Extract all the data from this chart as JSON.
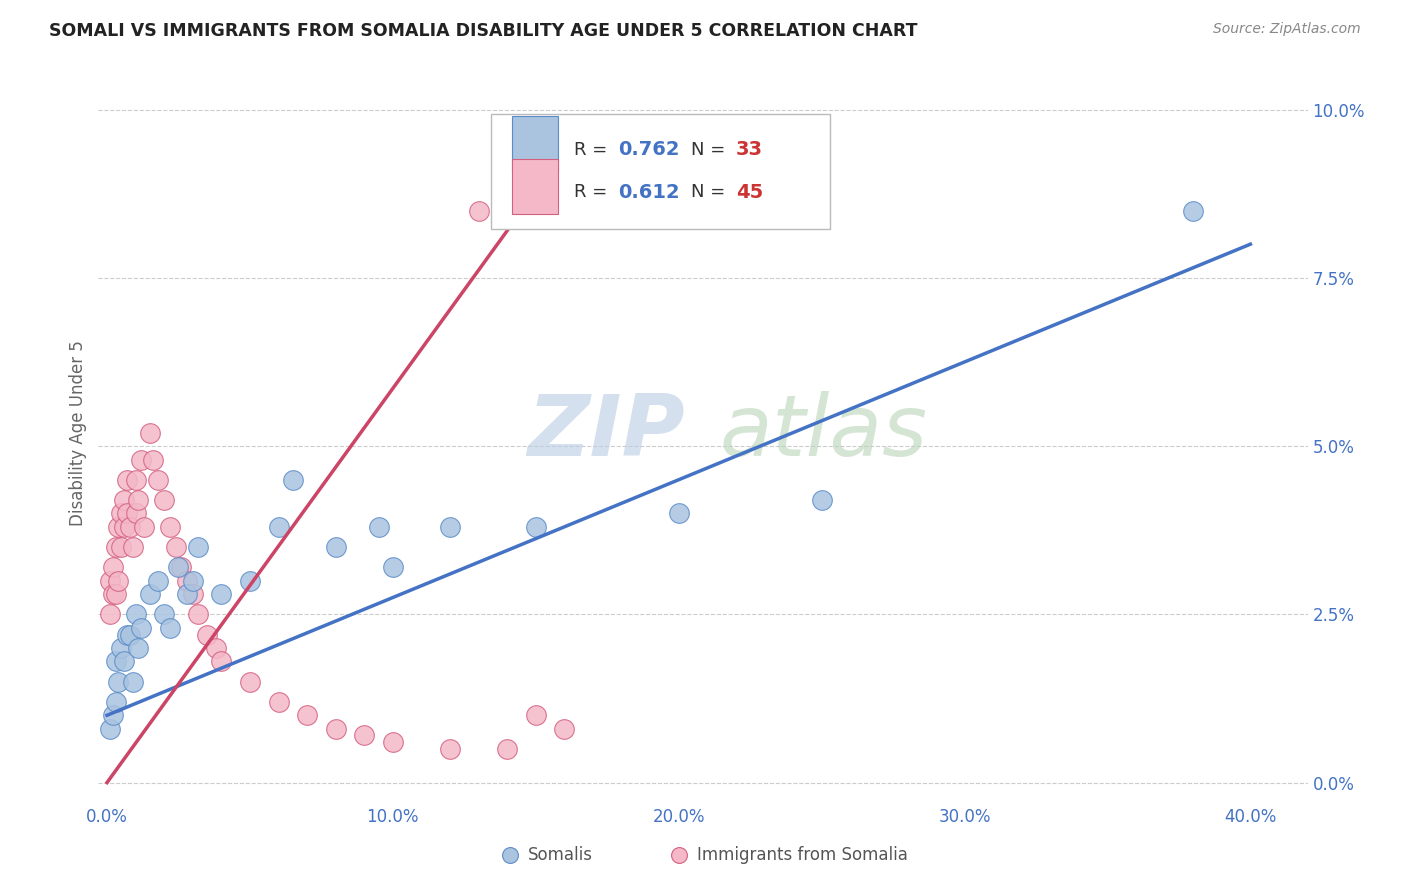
{
  "title": "SOMALI VS IMMIGRANTS FROM SOMALIA DISABILITY AGE UNDER 5 CORRELATION CHART",
  "source": "Source: ZipAtlas.com",
  "ylabel": "Disability Age Under 5",
  "xlim": [
    -0.003,
    0.42
  ],
  "ylim": [
    -0.003,
    0.107
  ],
  "xtick_vals": [
    0.0,
    0.1,
    0.2,
    0.3,
    0.4
  ],
  "ytick_vals": [
    0.0,
    0.025,
    0.05,
    0.075,
    0.1
  ],
  "blue_color": "#aac4e0",
  "blue_edge": "#5b8cc8",
  "blue_line": "#4472c4",
  "pink_color": "#f4b8c8",
  "pink_edge": "#d46080",
  "pink_line": "#cc4466",
  "watermark_zip_color": "#b8cce4",
  "watermark_atlas_color": "#b8d4b8",
  "legend_box_edge": "#cccccc",
  "r_value_color": "#4472c4",
  "n_value_color": "#cc3333",
  "source_color": "#888888",
  "title_color": "#222222",
  "ylabel_color": "#666666",
  "tick_color": "#4472c4",
  "grid_color": "#cccccc",
  "blue_line_start_x": 0.0,
  "blue_line_start_y": 0.01,
  "blue_line_end_x": 0.4,
  "blue_line_end_y": 0.08,
  "pink_line_start_x": 0.0,
  "pink_line_start_y": 0.0,
  "pink_line_end_x": 0.14,
  "pink_line_end_y": 0.082,
  "blue_pts_x": [
    0.001,
    0.002,
    0.003,
    0.003,
    0.004,
    0.005,
    0.006,
    0.007,
    0.008,
    0.009,
    0.01,
    0.011,
    0.012,
    0.015,
    0.018,
    0.02,
    0.022,
    0.025,
    0.028,
    0.03,
    0.032,
    0.04,
    0.05,
    0.06,
    0.065,
    0.08,
    0.095,
    0.1,
    0.12,
    0.15,
    0.2,
    0.25,
    0.38
  ],
  "blue_pts_y": [
    0.008,
    0.01,
    0.012,
    0.018,
    0.015,
    0.02,
    0.018,
    0.022,
    0.022,
    0.015,
    0.025,
    0.02,
    0.023,
    0.028,
    0.03,
    0.025,
    0.023,
    0.032,
    0.028,
    0.03,
    0.035,
    0.028,
    0.03,
    0.038,
    0.045,
    0.035,
    0.038,
    0.032,
    0.038,
    0.038,
    0.04,
    0.042,
    0.085
  ],
  "pink_pts_x": [
    0.001,
    0.001,
    0.002,
    0.002,
    0.003,
    0.003,
    0.004,
    0.004,
    0.005,
    0.005,
    0.006,
    0.006,
    0.007,
    0.007,
    0.008,
    0.009,
    0.01,
    0.01,
    0.011,
    0.012,
    0.013,
    0.015,
    0.016,
    0.018,
    0.02,
    0.022,
    0.024,
    0.026,
    0.028,
    0.03,
    0.032,
    0.035,
    0.038,
    0.04,
    0.05,
    0.06,
    0.07,
    0.08,
    0.09,
    0.1,
    0.12,
    0.14,
    0.15,
    0.16,
    0.13
  ],
  "pink_pts_y": [
    0.025,
    0.03,
    0.032,
    0.028,
    0.035,
    0.028,
    0.038,
    0.03,
    0.04,
    0.035,
    0.042,
    0.038,
    0.045,
    0.04,
    0.038,
    0.035,
    0.04,
    0.045,
    0.042,
    0.048,
    0.038,
    0.052,
    0.048,
    0.045,
    0.042,
    0.038,
    0.035,
    0.032,
    0.03,
    0.028,
    0.025,
    0.022,
    0.02,
    0.018,
    0.015,
    0.012,
    0.01,
    0.008,
    0.007,
    0.006,
    0.005,
    0.005,
    0.01,
    0.008,
    0.085
  ]
}
